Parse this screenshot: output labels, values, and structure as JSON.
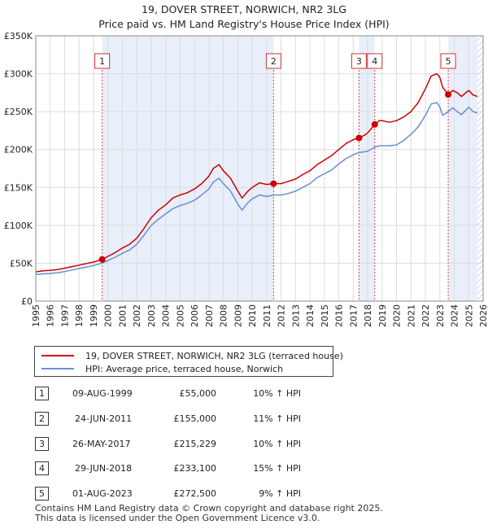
{
  "chart_data": {
    "type": "line",
    "title": "19, DOVER STREET, NORWICH, NR2 3LG",
    "subtitle": "Price paid vs. HM Land Registry's House Price Index (HPI)",
    "xlabel": "",
    "ylabel": "",
    "xlim": [
      1995,
      2026
    ],
    "ylim": [
      0,
      350000
    ],
    "x_ticks": [
      "1995",
      "1996",
      "1997",
      "1998",
      "1999",
      "2000",
      "2001",
      "2002",
      "2003",
      "2004",
      "2005",
      "2006",
      "2007",
      "2008",
      "2009",
      "2010",
      "2011",
      "2012",
      "2013",
      "2014",
      "2015",
      "2016",
      "2017",
      "2018",
      "2019",
      "2020",
      "2021",
      "2022",
      "2023",
      "2024",
      "2025",
      "2026"
    ],
    "y_ticks": [
      {
        "value": 0,
        "label": "£0"
      },
      {
        "value": 50000,
        "label": "£50K"
      },
      {
        "value": 100000,
        "label": "£100K"
      },
      {
        "value": 150000,
        "label": "£150K"
      },
      {
        "value": 200000,
        "label": "£200K"
      },
      {
        "value": 250000,
        "label": "£250K"
      },
      {
        "value": 300000,
        "label": "£300K"
      },
      {
        "value": 350000,
        "label": "£350K"
      }
    ],
    "colors": {
      "property": "#cc0000",
      "hpi": "#6a8fd0",
      "shade": "#e8eefa",
      "vline": "#dd4444",
      "grid": "#dddddd"
    },
    "series": [
      {
        "name": "19, DOVER STREET, NORWICH, NR2 3LG (terraced house)",
        "color": "#cc0000",
        "points": [
          [
            1995.0,
            38500
          ],
          [
            1995.5,
            40000
          ],
          [
            1996.0,
            40500
          ],
          [
            1996.5,
            41500
          ],
          [
            1997.0,
            43500
          ],
          [
            1997.5,
            45500
          ],
          [
            1998.0,
            47500
          ],
          [
            1998.5,
            49500
          ],
          [
            1999.0,
            51500
          ],
          [
            1999.6,
            55000
          ],
          [
            2000.0,
            59000
          ],
          [
            2000.5,
            64000
          ],
          [
            2001.0,
            70000
          ],
          [
            2001.5,
            75000
          ],
          [
            2002.0,
            83000
          ],
          [
            2002.5,
            96000
          ],
          [
            2003.0,
            110000
          ],
          [
            2003.5,
            120000
          ],
          [
            2004.0,
            127000
          ],
          [
            2004.5,
            136000
          ],
          [
            2005.0,
            140000
          ],
          [
            2005.5,
            143000
          ],
          [
            2006.0,
            148000
          ],
          [
            2006.5,
            155000
          ],
          [
            2007.0,
            165000
          ],
          [
            2007.3,
            175000
          ],
          [
            2007.7,
            180000
          ],
          [
            2008.0,
            172000
          ],
          [
            2008.5,
            162000
          ],
          [
            2009.0,
            145000
          ],
          [
            2009.3,
            136000
          ],
          [
            2009.7,
            145000
          ],
          [
            2010.0,
            150000
          ],
          [
            2010.5,
            156000
          ],
          [
            2011.0,
            154000
          ],
          [
            2011.48,
            155000
          ],
          [
            2012.0,
            155000
          ],
          [
            2012.5,
            158000
          ],
          [
            2013.0,
            161000
          ],
          [
            2013.5,
            167000
          ],
          [
            2014.0,
            172000
          ],
          [
            2014.5,
            180000
          ],
          [
            2015.0,
            186000
          ],
          [
            2015.5,
            192000
          ],
          [
            2016.0,
            200000
          ],
          [
            2016.5,
            208000
          ],
          [
            2017.0,
            213000
          ],
          [
            2017.4,
            215229
          ],
          [
            2017.8,
            219000
          ],
          [
            2018.0,
            222000
          ],
          [
            2018.49,
            233100
          ],
          [
            2018.8,
            238000
          ],
          [
            2019.0,
            238000
          ],
          [
            2019.5,
            236000
          ],
          [
            2020.0,
            238000
          ],
          [
            2020.5,
            243000
          ],
          [
            2021.0,
            250000
          ],
          [
            2021.5,
            262000
          ],
          [
            2022.0,
            280000
          ],
          [
            2022.4,
            297000
          ],
          [
            2022.8,
            300000
          ],
          [
            2023.0,
            295000
          ],
          [
            2023.2,
            282000
          ],
          [
            2023.58,
            272500
          ],
          [
            2023.9,
            278000
          ],
          [
            2024.2,
            275000
          ],
          [
            2024.5,
            270000
          ],
          [
            2024.8,
            275000
          ],
          [
            2025.0,
            278000
          ],
          [
            2025.3,
            272000
          ],
          [
            2025.6,
            270000
          ]
        ]
      },
      {
        "name": "HPI: Average price, terraced house, Norwich",
        "color": "#6a8fd0",
        "points": [
          [
            1995.0,
            35000
          ],
          [
            1995.5,
            36000
          ],
          [
            1996.0,
            36500
          ],
          [
            1996.5,
            37500
          ],
          [
            1997.0,
            39000
          ],
          [
            1997.5,
            41000
          ],
          [
            1998.0,
            43000
          ],
          [
            1998.5,
            45000
          ],
          [
            1999.0,
            47000
          ],
          [
            1999.6,
            50000
          ],
          [
            2000.0,
            53500
          ],
          [
            2000.5,
            58000
          ],
          [
            2001.0,
            63000
          ],
          [
            2001.5,
            67500
          ],
          [
            2002.0,
            75000
          ],
          [
            2002.5,
            87000
          ],
          [
            2003.0,
            100000
          ],
          [
            2003.5,
            108000
          ],
          [
            2004.0,
            115000
          ],
          [
            2004.5,
            122000
          ],
          [
            2005.0,
            126000
          ],
          [
            2005.5,
            129000
          ],
          [
            2006.0,
            133000
          ],
          [
            2006.5,
            140000
          ],
          [
            2007.0,
            148000
          ],
          [
            2007.3,
            157000
          ],
          [
            2007.7,
            162000
          ],
          [
            2008.0,
            155000
          ],
          [
            2008.5,
            145000
          ],
          [
            2009.0,
            128000
          ],
          [
            2009.3,
            120000
          ],
          [
            2009.7,
            130000
          ],
          [
            2010.0,
            135000
          ],
          [
            2010.5,
            140000
          ],
          [
            2011.0,
            138000
          ],
          [
            2011.48,
            140000
          ],
          [
            2012.0,
            140000
          ],
          [
            2012.5,
            142000
          ],
          [
            2013.0,
            145000
          ],
          [
            2013.5,
            150000
          ],
          [
            2014.0,
            155000
          ],
          [
            2014.5,
            163000
          ],
          [
            2015.0,
            168000
          ],
          [
            2015.5,
            173000
          ],
          [
            2016.0,
            181000
          ],
          [
            2016.5,
            188000
          ],
          [
            2017.0,
            193000
          ],
          [
            2017.4,
            196000
          ],
          [
            2017.8,
            197000
          ],
          [
            2018.0,
            198000
          ],
          [
            2018.49,
            203000
          ],
          [
            2018.8,
            205000
          ],
          [
            2019.0,
            205000
          ],
          [
            2019.5,
            205000
          ],
          [
            2020.0,
            206000
          ],
          [
            2020.5,
            212000
          ],
          [
            2021.0,
            220000
          ],
          [
            2021.5,
            230000
          ],
          [
            2022.0,
            245000
          ],
          [
            2022.4,
            260000
          ],
          [
            2022.8,
            262000
          ],
          [
            2023.0,
            256000
          ],
          [
            2023.2,
            245000
          ],
          [
            2023.58,
            250000
          ],
          [
            2023.9,
            255000
          ],
          [
            2024.2,
            250000
          ],
          [
            2024.5,
            246000
          ],
          [
            2024.8,
            252000
          ],
          [
            2025.0,
            256000
          ],
          [
            2025.3,
            250000
          ],
          [
            2025.6,
            248000
          ]
        ]
      }
    ],
    "sales": [
      {
        "id": "1",
        "x": 1999.6,
        "value": 55000,
        "date": "09-AUG-1999",
        "price": "£55,000",
        "hpi": "10% ↑ HPI"
      },
      {
        "id": "2",
        "x": 2011.48,
        "value": 155000,
        "date": "24-JUN-2011",
        "price": "£155,000",
        "hpi": "11% ↑ HPI"
      },
      {
        "id": "3",
        "x": 2017.4,
        "value": 215229,
        "date": "26-MAY-2017",
        "price": "£215,229",
        "hpi": "10% ↑ HPI"
      },
      {
        "id": "4",
        "x": 2018.49,
        "value": 233100,
        "date": "29-JUN-2018",
        "price": "£233,100",
        "hpi": "15% ↑ HPI"
      },
      {
        "id": "5",
        "x": 2023.58,
        "value": 272500,
        "date": "01-AUG-2023",
        "price": "£272,500",
        "hpi": "9% ↑ HPI"
      }
    ],
    "shaded_ranges": [
      [
        1999.6,
        2011.48
      ],
      [
        2017.4,
        2018.49
      ],
      [
        2023.58,
        2025.6
      ]
    ],
    "hatched_range": [
      2025.6,
      2026
    ]
  },
  "legend": {
    "property_label": "19, DOVER STREET, NORWICH, NR2 3LG (terraced house)",
    "hpi_label": "HPI: Average price, terraced house, Norwich"
  },
  "footer": {
    "line1": "Contains HM Land Registry data © Crown copyright and database right 2025.",
    "line2": "This data is licensed under the Open Government Licence v3.0."
  }
}
